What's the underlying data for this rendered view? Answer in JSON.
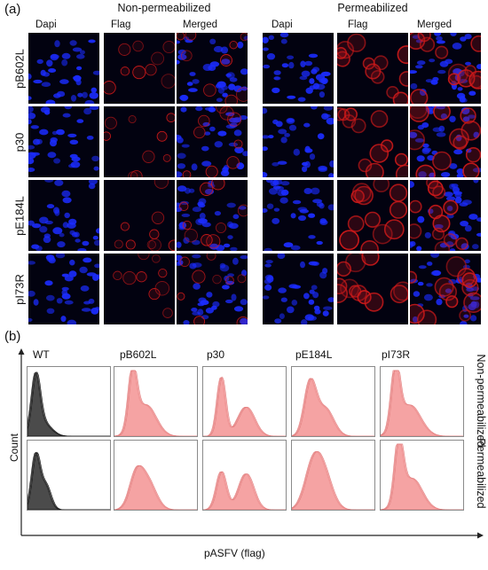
{
  "figure": {
    "panel_a": {
      "label": "(a)",
      "groups": [
        {
          "title": "Non-permeabilized",
          "columns": [
            "Dapi",
            "Flag",
            "Merged"
          ]
        },
        {
          "title": "Permeabilized",
          "columns": [
            "Dapi",
            "Flag",
            "Merged"
          ]
        }
      ],
      "rows": [
        "pB602L",
        "p30",
        "pE184L",
        "pI73R"
      ]
    },
    "panel_b": {
      "label": "(b)",
      "histograms": [
        "WT",
        "pB602L",
        "p30",
        "pE184L",
        "pI73R"
      ],
      "conditions": [
        "Non-permeabilized",
        "Permeabilized"
      ],
      "y_axis_label": "Count",
      "x_axis_label": "pASFV (flag)",
      "colors": {
        "wt": "#2b2b2b",
        "protein": "#f4a6a6",
        "protein_edge": "#e27d7d"
      }
    }
  },
  "colors": {
    "dapi": "#1b2cff",
    "flag": "#d11a1a",
    "background": "#020210"
  }
}
